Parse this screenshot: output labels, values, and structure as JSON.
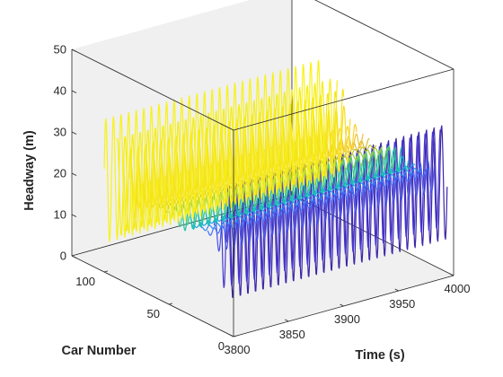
{
  "chart_data": {
    "type": "line",
    "view": "3d",
    "title": "",
    "xlabel": "Time (s)",
    "ylabel": "Car Number",
    "zlabel": "Headway (m)",
    "xlim": [
      3800,
      4000
    ],
    "ylim": [
      0,
      125
    ],
    "zlim": [
      0,
      50
    ],
    "xticks": [
      3800,
      3850,
      3900,
      3950,
      4000
    ],
    "yticks": [
      0,
      50,
      100
    ],
    "zticks": [
      0,
      10,
      20,
      30,
      40,
      50
    ],
    "grid": false,
    "box": true,
    "colormap": "parula",
    "series": [
      {
        "car": 5,
        "color": "#3e26a8",
        "center": 22,
        "amplitude": 14.0,
        "period_s": 6.9,
        "phase": 0.0
      },
      {
        "car": 10,
        "color": "#4437d1",
        "center": 22,
        "amplitude": 12.0,
        "period_s": 6.9,
        "phase": 1.9
      },
      {
        "car": 15,
        "color": "#4752e8",
        "center": 22,
        "amplitude": 4.0,
        "period_s": 6.9,
        "phase": 0.7
      },
      {
        "car": 20,
        "color": "#3d6ffc",
        "center": 22,
        "amplitude": 0.8,
        "period_s": 6.9,
        "phase": 2.4
      },
      {
        "car": 25,
        "color": "#2d8bf1",
        "center": 22,
        "amplitude": 0.5,
        "period_s": 6.9,
        "phase": 1.1
      },
      {
        "car": 30,
        "color": "#1fa3db",
        "center": 22,
        "amplitude": 0.4,
        "period_s": 6.9,
        "phase": 3.0
      },
      {
        "car": 35,
        "color": "#0bb6c3",
        "center": 22,
        "amplitude": 1.8,
        "period_s": 6.9,
        "phase": 0.3
      },
      {
        "car": 40,
        "color": "#1ac2a6",
        "center": 22,
        "amplitude": 2.8,
        "period_s": 6.9,
        "phase": 2.0
      },
      {
        "car": 45,
        "color": "#3fc884",
        "center": 22,
        "amplitude": 2.8,
        "period_s": 6.9,
        "phase": 0.9
      },
      {
        "car": 50,
        "color": "#6ecb5f",
        "center": 22,
        "amplitude": 1.2,
        "period_s": 6.9,
        "phase": 2.7
      },
      {
        "car": 55,
        "color": "#99c843",
        "center": 22,
        "amplitude": 0.8,
        "period_s": 6.9,
        "phase": 1.5
      },
      {
        "car": 60,
        "color": "#bdc234",
        "center": 22,
        "amplitude": 0.6,
        "period_s": 6.9,
        "phase": 0.4
      },
      {
        "car": 65,
        "color": "#dbbd2c",
        "center": 22,
        "amplitude": 1.0,
        "period_s": 6.9,
        "phase": 2.2
      },
      {
        "car": 70,
        "color": "#f2c230",
        "center": 22,
        "amplitude": 1.8,
        "period_s": 6.9,
        "phase": 1.0
      },
      {
        "car": 75,
        "color": "#fcd12d",
        "center": 22,
        "amplitude": 3.0,
        "period_s": 6.9,
        "phase": 2.9
      },
      {
        "car": 80,
        "color": "#f7de20",
        "center": 22,
        "amplitude": 7.0,
        "period_s": 6.9,
        "phase": 0.6
      },
      {
        "car": 85,
        "color": "#f5e61a",
        "center": 22,
        "amplitude": 10.0,
        "period_s": 6.9,
        "phase": 2.3
      },
      {
        "car": 90,
        "color": "#f4ec18",
        "center": 22,
        "amplitude": 12.0,
        "period_s": 6.9,
        "phase": 1.3
      },
      {
        "car": 100,
        "color": "#f8f214",
        "center": 22,
        "amplitude": 15.0,
        "period_s": 6.9,
        "phase": 0.2
      }
    ]
  }
}
